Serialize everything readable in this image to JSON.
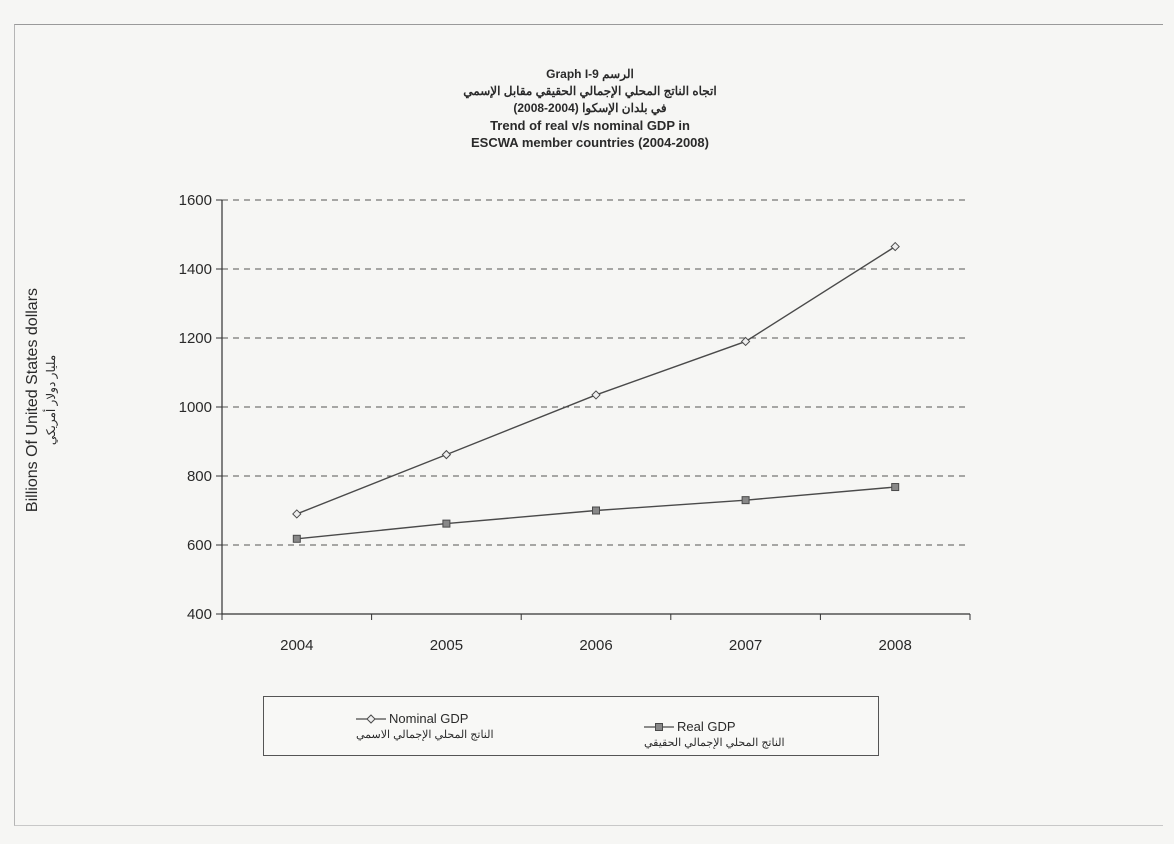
{
  "chart_data": {
    "type": "line",
    "title_lines": [
      "الرسم Graph I-9",
      "اتجاه الناتج المحلي الإجمالي الحقيقي مقابل الإسمي",
      "في بلدان الإسكوا (2004-2008)",
      "Trend of real v/s nominal GDP in",
      "ESCWA member countries (2004-2008)"
    ],
    "ylabel": "Billions Of United States dollars",
    "ylabel_ar": "مليار دولار أمريكي",
    "xlabel": "",
    "x": [
      "2004",
      "2005",
      "2006",
      "2007",
      "2008"
    ],
    "yticks": [
      "400",
      "600",
      "800",
      "1000",
      "1200",
      "1400",
      "1600"
    ],
    "ylim": [
      400,
      1600
    ],
    "grid": "horizontal dashed",
    "legend_position": "bottom",
    "series": [
      {
        "name": "Nominal GDP",
        "name_ar": "الناتج المحلي الإجمالي الاسمي",
        "marker": "diamond",
        "color": "#4a4a4a",
        "values": [
          690,
          862,
          1035,
          1190,
          1465
        ]
      },
      {
        "name": "Real GDP",
        "name_ar": "الناتج المحلي الإجمالي الحقيقي",
        "marker": "square",
        "color": "#4a4a4a",
        "values": [
          618,
          662,
          700,
          730,
          768
        ]
      }
    ]
  }
}
